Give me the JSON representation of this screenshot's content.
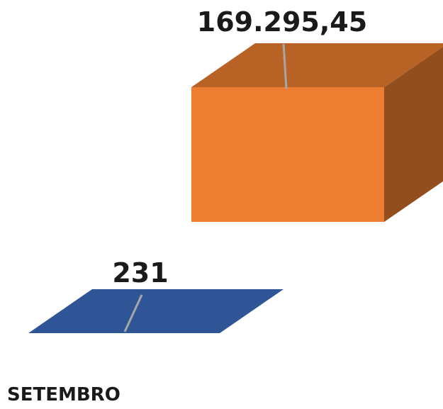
{
  "chart_data": {
    "type": "bar",
    "style": "3d-column",
    "categories": [
      "SETEMBRO"
    ],
    "series": [
      {
        "values": [
          231
        ],
        "label": "231",
        "color": "#2f5597"
      },
      {
        "values": [
          169295.45
        ],
        "label": "169.295,45",
        "color": "#ed7d31"
      }
    ],
    "grid": false,
    "legend": "none"
  }
}
